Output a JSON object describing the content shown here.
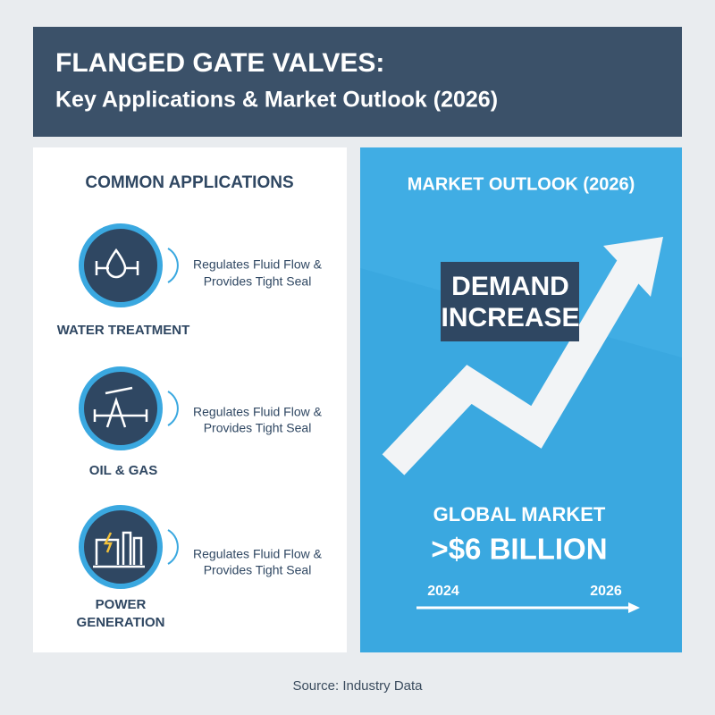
{
  "header": {
    "title": "FLANGED GATE VALVES:",
    "subtitle": "Key Applications & Market Outlook (2026)"
  },
  "applications": {
    "heading": "COMMON APPLICATIONS",
    "items": [
      {
        "label": [
          "WATER TREATMENT"
        ],
        "description": [
          "Regulates Fluid Flow &",
          "Provides Tight Seal"
        ]
      },
      {
        "label": [
          "OIL & GAS"
        ],
        "description": [
          "Regulates Fluid Flow &",
          "Provides Tight Seal"
        ]
      },
      {
        "label": [
          "POWER",
          "GENERATION"
        ],
        "description": [
          "Regulates Fluid Flow &",
          "Provides Tight Seal"
        ]
      }
    ]
  },
  "market": {
    "heading": "MARKET OUTLOOK (2026)",
    "callout": [
      "DEMAND",
      "INCREASE"
    ],
    "label": "GLOBAL MARKET",
    "value": ">$6 BILLION",
    "timeline": {
      "start": "2024",
      "end": "2026"
    }
  },
  "footer": {
    "source": "Source: Industry Data"
  }
}
